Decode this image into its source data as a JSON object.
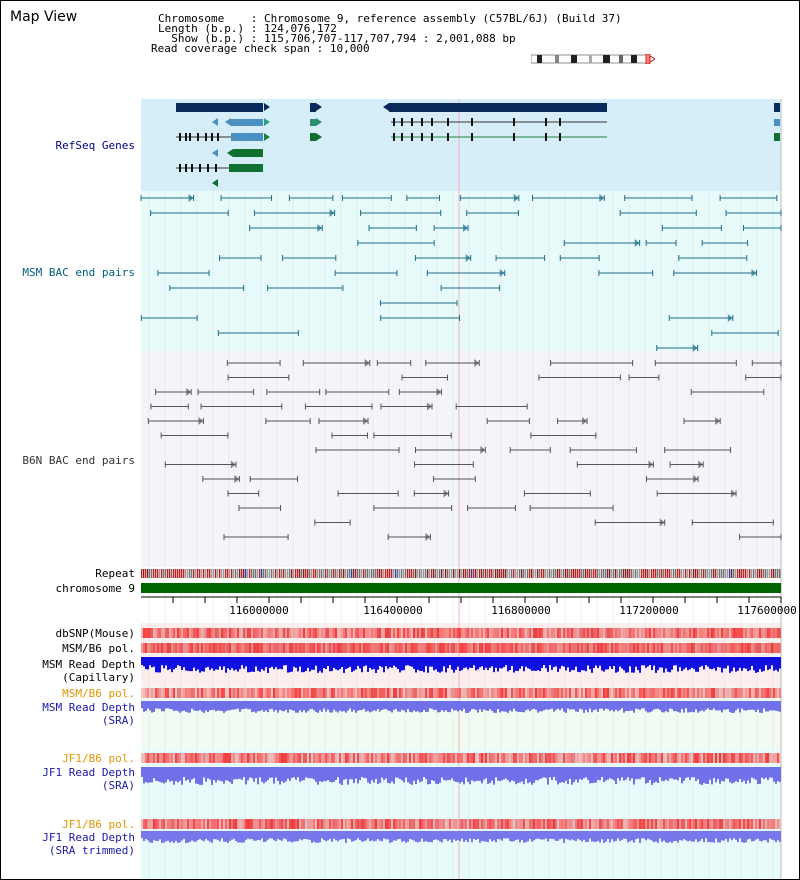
{
  "header": {
    "title": "Map View",
    "info": [
      {
        "label": "Chromosome    ",
        "value": "Chromosome 9, reference assembly (C57BL/6J) (Build 37)"
      },
      {
        "label": "Length (b.p.) ",
        "value": "124,076,172"
      },
      {
        "label": "  Show (b.p.) ",
        "value": "115,706,707-117,707,794 : 2,001,088 bp"
      },
      {
        "label": "Read coverage check span ",
        "value": "10,000"
      }
    ]
  },
  "tracks": {
    "refseq": {
      "label": "RefSeq Genes",
      "color": "#000080",
      "bg": "#d6eef9"
    },
    "msm_bac": {
      "label": "MSM BAC end pairs",
      "color": "#006080",
      "bg": "#e8fbfb"
    },
    "b6n_bac": {
      "label": "B6N BAC end pairs",
      "color": "#333333",
      "bg": "#f4f4fb"
    },
    "repeat": {
      "label": "Repeat"
    },
    "chromosome": {
      "label": "chromosome 9",
      "color": "#006400"
    }
  },
  "axis": {
    "ticks": [
      "116000000",
      "116400000",
      "116800000",
      "117200000",
      "117600000"
    ]
  },
  "lower_tracks": [
    {
      "key": "dbsnp",
      "lines": [
        "dbSNP(Mouse)"
      ],
      "color": "#000000"
    },
    {
      "key": "msm_b6_pol_1",
      "lines": [
        "MSM/B6 pol."
      ],
      "color": "#000000"
    },
    {
      "key": "msm_read_depth_cap",
      "lines": [
        "MSM Read Depth",
        "(Capillary)"
      ],
      "color": "#000000"
    },
    {
      "key": "msm_b6_pol_2",
      "lines": [
        "MSM/B6 pol."
      ],
      "color": "#e69500"
    },
    {
      "key": "msm_read_depth_sra",
      "lines": [
        "MSM Read Depth",
        "(SRA)"
      ],
      "color": "#1a1aa6"
    },
    {
      "key": "jf1_b6_pol_1",
      "lines": [
        "JF1/B6 pol."
      ],
      "color": "#e69500"
    },
    {
      "key": "jf1_read_depth_sra",
      "lines": [
        "JF1 Read Depth",
        "(SRA)"
      ],
      "color": "#1a1aa6"
    },
    {
      "key": "jf1_b6_pol_2",
      "lines": [
        "JF1/B6 pol."
      ],
      "color": "#e69500"
    },
    {
      "key": "jf1_read_depth_trim",
      "lines": [
        "JF1 Read Depth",
        "(SRA trimmed)"
      ],
      "color": "#1a1aa6"
    }
  ]
}
